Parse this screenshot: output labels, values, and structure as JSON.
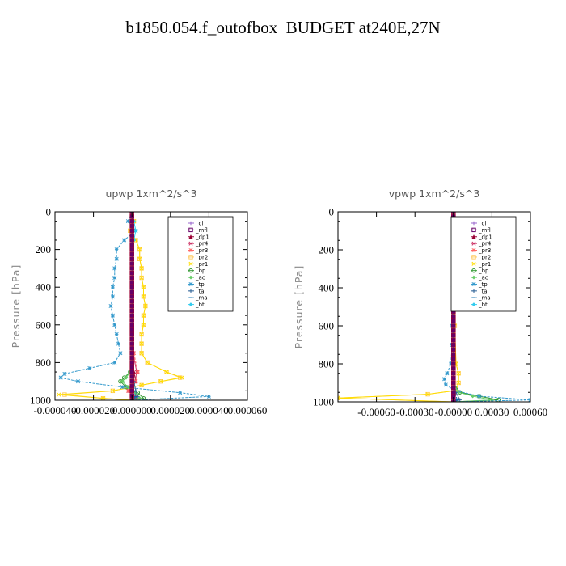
{
  "figure": {
    "title": "b1850.054.f_outofbox  BUDGET at240E,27N"
  },
  "chart_data": [
    {
      "type": "line",
      "title": "upwp   1xm^2/s^3",
      "xlabel": "",
      "ylabel": "Pressure [hPa]",
      "xlim": [
        -4e-05,
        6e-05
      ],
      "ylim": [
        1000,
        0
      ],
      "xticks": [
        -4e-05,
        -2e-05,
        0.0,
        2e-05,
        4e-05,
        6e-05
      ],
      "xtick_labels": [
        "-0.000040",
        "-0.000020",
        "0.000000",
        "0.000020",
        "0.000040",
        "0.000060"
      ],
      "yticks": [
        0,
        200,
        400,
        600,
        800,
        1000
      ],
      "ytick_labels": [
        "0",
        "200",
        "400",
        "600",
        "800",
        "1000"
      ],
      "legend_position": "top-right",
      "series": [
        {
          "name": "_cl",
          "color": "#9966cc",
          "marker": "+",
          "y": [
            0,
            100,
            200,
            400,
            600,
            800,
            900,
            950,
            1000
          ],
          "x": [
            0,
            0,
            0,
            0,
            0,
            0,
            0,
            0,
            0
          ]
        },
        {
          "name": "_mfl",
          "color": "#660066",
          "marker": "square",
          "y": [
            0,
            100,
            200,
            400,
            600,
            800,
            900,
            950,
            1000
          ],
          "x": [
            0,
            0,
            0,
            0,
            0,
            0,
            0,
            0,
            0
          ]
        },
        {
          "name": "_dp1",
          "color": "#990033",
          "marker": "triangle",
          "y": [
            0,
            100,
            200,
            400,
            600,
            750,
            850,
            900,
            950,
            980,
            1000
          ],
          "x": [
            0,
            0,
            0,
            0,
            0,
            0,
            1e-06,
            2e-06,
            -1e-06,
            2e-06,
            0
          ]
        },
        {
          "name": "_pr4",
          "color": "#cc3366",
          "marker": "x",
          "y": [
            0,
            100,
            200,
            400,
            600,
            750,
            850,
            900,
            950,
            980,
            1000
          ],
          "x": [
            0,
            0,
            0,
            0,
            0,
            5e-07,
            2.5e-06,
            1.5e-06,
            -1.5e-06,
            1e-06,
            0
          ]
        },
        {
          "name": "_pr3",
          "color": "#ff6666",
          "marker": "star",
          "y": [
            0,
            100,
            200,
            400,
            600,
            750,
            850,
            900,
            950,
            980,
            1000
          ],
          "x": [
            0,
            0,
            0,
            0,
            0,
            1e-06,
            3e-06,
            2e-06,
            -2e-06,
            2e-06,
            0
          ]
        },
        {
          "name": "_pr2",
          "color": "#ffcc66",
          "marker": "square",
          "y": [
            0,
            50,
            100,
            150,
            200,
            250,
            300,
            350,
            400,
            450,
            500,
            550,
            600,
            650,
            700,
            750,
            800,
            850,
            880,
            900,
            920,
            950,
            970,
            990,
            1000
          ],
          "x": [
            0,
            1e-06,
            -1e-06,
            2e-06,
            4e-06,
            4e-06,
            5e-06,
            5e-06,
            6e-06,
            6e-06,
            7e-06,
            6e-06,
            6e-06,
            5e-06,
            5e-06,
            5e-06,
            8e-06,
            1.8e-05,
            2.5e-05,
            1.5e-05,
            5e-06,
            -1e-05,
            -3.5e-05,
            -1.5e-05,
            0
          ]
        },
        {
          "name": "_pr1",
          "color": "#ffdd00",
          "marker": "x",
          "y": [
            0,
            50,
            100,
            150,
            200,
            250,
            300,
            350,
            400,
            450,
            500,
            550,
            600,
            650,
            700,
            750,
            800,
            850,
            880,
            900,
            920,
            950,
            970,
            990,
            1000
          ],
          "x": [
            0,
            1e-06,
            -1e-06,
            2e-06,
            4e-06,
            4e-06,
            5e-06,
            5e-06,
            6e-06,
            6e-06,
            7e-06,
            6e-06,
            6e-06,
            5e-06,
            5e-06,
            5e-06,
            8e-06,
            1.8e-05,
            2.6e-05,
            1.5e-05,
            5e-06,
            -1e-05,
            -3.8e-05,
            -1.5e-05,
            0
          ]
        },
        {
          "name": "_bp",
          "color": "#339933",
          "marker": "circle",
          "y": [
            0,
            200,
            400,
            600,
            800,
            850,
            880,
            900,
            930,
            960,
            990,
            1000
          ],
          "x": [
            0,
            0,
            0,
            0,
            0,
            -1e-06,
            -4e-06,
            -6e-06,
            -3e-06,
            3e-06,
            6e-06,
            0
          ]
        },
        {
          "name": "_ac",
          "color": "#66cc66",
          "marker": "diamond",
          "y": [
            0,
            200,
            400,
            600,
            800,
            850,
            880,
            900,
            930,
            960,
            990,
            1000
          ],
          "x": [
            0,
            0,
            0,
            0,
            0,
            -1e-06,
            -3e-06,
            -5e-06,
            -2e-06,
            2e-06,
            4e-06,
            0
          ]
        },
        {
          "name": "_tp",
          "color": "#3399cc",
          "marker": "star",
          "y": [
            0,
            50,
            100,
            150,
            200,
            250,
            300,
            350,
            400,
            450,
            500,
            550,
            600,
            650,
            700,
            750,
            800,
            830,
            860,
            880,
            900,
            930,
            960,
            980,
            1000
          ],
          "x": [
            0,
            -2e-06,
            2e-06,
            -4e-06,
            -8e-06,
            -8e-06,
            -9e-06,
            -9e-06,
            -1e-05,
            -1e-05,
            -1.1e-05,
            -1e-05,
            -9e-06,
            -8e-06,
            -7e-06,
            -6e-06,
            -9e-06,
            -2.2e-05,
            -3.5e-05,
            -3.7e-05,
            -2.8e-05,
            -5e-06,
            2.5e-05,
            4e-05,
            0
          ]
        },
        {
          "name": "_ta",
          "color": "#336699",
          "marker": "+",
          "y": [
            0,
            100,
            200,
            400,
            600,
            800,
            900,
            950,
            980,
            1000
          ],
          "x": [
            0,
            0,
            0,
            0,
            0,
            0,
            1e-06,
            2e-06,
            3e-06,
            0
          ]
        },
        {
          "name": "_ma",
          "color": "#0066aa",
          "marker": "dash",
          "y": [
            0,
            100,
            200,
            400,
            600,
            800,
            900,
            950,
            980,
            1000
          ],
          "x": [
            0,
            0,
            0,
            0,
            0,
            0,
            0,
            1e-06,
            2e-06,
            0
          ]
        },
        {
          "name": "_bt",
          "color": "#33ccee",
          "marker": "diamond",
          "y": [
            0,
            50,
            100,
            150,
            200,
            1000
          ],
          "x": [
            0,
            1e-06,
            2e-06,
            1e-06,
            0,
            0
          ]
        }
      ]
    },
    {
      "type": "line",
      "title": "vpwp   1xm^2/s^3",
      "xlabel": "",
      "ylabel": "Pressure [hPa]",
      "xlim": [
        -0.0009,
        0.0006
      ],
      "ylim": [
        1000,
        0
      ],
      "xticks": [
        -0.0006,
        -0.0003,
        0.0,
        0.0003,
        0.0006
      ],
      "xtick_labels": [
        "-0.00060",
        "-0.00030",
        "-0.00000",
        "0.00030",
        "0.00060"
      ],
      "yticks": [
        0,
        200,
        400,
        600,
        800,
        1000
      ],
      "ytick_labels": [
        "0",
        "200",
        "400",
        "600",
        "800",
        "1000"
      ],
      "legend_position": "top-right",
      "series": [
        {
          "name": "_cl",
          "color": "#9966cc",
          "marker": "+",
          "y": [
            0,
            200,
            400,
            600,
            800,
            900,
            1000
          ],
          "x": [
            0,
            0,
            0,
            0,
            0,
            0,
            0
          ]
        },
        {
          "name": "_mfl",
          "color": "#660066",
          "marker": "square",
          "y": [
            0,
            200,
            400,
            600,
            800,
            900,
            1000
          ],
          "x": [
            0,
            0,
            0,
            0,
            0,
            0,
            0
          ]
        },
        {
          "name": "_dp1",
          "color": "#990033",
          "marker": "triangle",
          "y": [
            0,
            200,
            400,
            600,
            800,
            900,
            950,
            1000
          ],
          "x": [
            0,
            0,
            0,
            0,
            0,
            0,
            1e-05,
            0
          ]
        },
        {
          "name": "_pr4",
          "color": "#cc3366",
          "marker": "x",
          "y": [
            0,
            200,
            400,
            600,
            800,
            900,
            950,
            1000
          ],
          "x": [
            0,
            0,
            0,
            0,
            0,
            0,
            1e-05,
            0
          ]
        },
        {
          "name": "_pr3",
          "color": "#ff6666",
          "marker": "star",
          "y": [
            0,
            200,
            400,
            600,
            800,
            900,
            950,
            1000
          ],
          "x": [
            0,
            0,
            0,
            0,
            0,
            0,
            1e-05,
            0
          ]
        },
        {
          "name": "_pr2",
          "color": "#ffcc66",
          "marker": "square",
          "y": [
            0,
            200,
            400,
            600,
            800,
            850,
            900,
            940,
            960,
            980,
            1000
          ],
          "x": [
            0,
            5e-06,
            8e-06,
            1e-05,
            2e-05,
            4e-05,
            4e-05,
            2e-05,
            -0.0002,
            -0.0009,
            0
          ]
        },
        {
          "name": "_pr1",
          "color": "#ffdd00",
          "marker": "x",
          "y": [
            0,
            200,
            400,
            600,
            800,
            850,
            900,
            940,
            960,
            980,
            1000
          ],
          "x": [
            0,
            5e-06,
            8e-06,
            1e-05,
            2e-05,
            4e-05,
            4e-05,
            2e-05,
            -0.0002,
            -0.0009,
            0
          ]
        },
        {
          "name": "_bp",
          "color": "#339933",
          "marker": "circle",
          "y": [
            0,
            200,
            400,
            600,
            800,
            900,
            950,
            970,
            990,
            1000
          ],
          "x": [
            0,
            0,
            0,
            0,
            0,
            0,
            5e-05,
            0.0002,
            0.00035,
            0
          ]
        },
        {
          "name": "_ac",
          "color": "#66cc66",
          "marker": "diamond",
          "y": [
            0,
            200,
            400,
            600,
            800,
            900,
            950,
            970,
            990,
            1000
          ],
          "x": [
            0,
            0,
            0,
            0,
            0,
            0,
            4e-05,
            0.00015,
            0.0003,
            0
          ]
        },
        {
          "name": "_tp",
          "color": "#3399cc",
          "marker": "star",
          "y": [
            0,
            200,
            400,
            600,
            700,
            800,
            850,
            880,
            910,
            940,
            970,
            990,
            1000
          ],
          "x": [
            0,
            -5e-06,
            -5e-06,
            -1e-05,
            -1e-05,
            -2e-05,
            -5e-05,
            -7e-05,
            -6e-05,
            1e-05,
            0.0002,
            0.0006,
            0
          ]
        },
        {
          "name": "_ta",
          "color": "#336699",
          "marker": "+",
          "y": [
            0,
            200,
            400,
            600,
            800,
            900,
            950,
            990,
            1000
          ],
          "x": [
            0,
            0,
            0,
            0,
            0,
            0,
            2e-05,
            5e-05,
            0
          ]
        },
        {
          "name": "_ma",
          "color": "#0066aa",
          "marker": "dash",
          "y": [
            0,
            200,
            400,
            600,
            800,
            900,
            950,
            990,
            1000
          ],
          "x": [
            0,
            0,
            0,
            0,
            0,
            0,
            1e-05,
            3e-05,
            0
          ]
        },
        {
          "name": "_bt",
          "color": "#33ccee",
          "marker": "diamond",
          "y": [
            0,
            200,
            400,
            600,
            800,
            900,
            1000
          ],
          "x": [
            0,
            0,
            0,
            0,
            0,
            0,
            0
          ]
        }
      ]
    }
  ]
}
